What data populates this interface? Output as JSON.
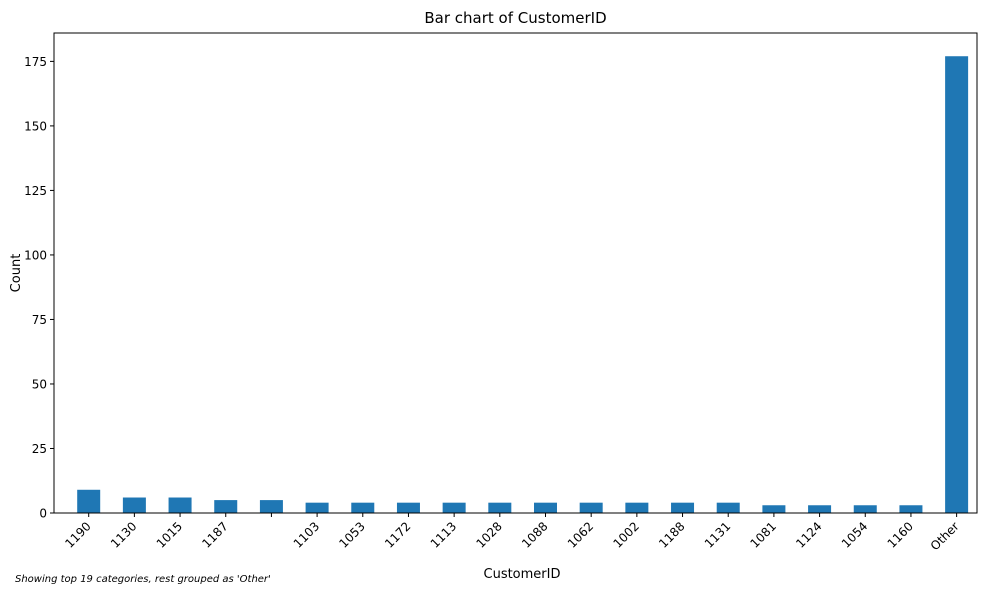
{
  "chart_data": {
    "type": "bar",
    "title": "Bar chart of CustomerID",
    "xlabel": "CustomerID",
    "ylabel": "Count",
    "categories": [
      "1190",
      "1130",
      "1015",
      "1187",
      "",
      "1103",
      "1053",
      "1172",
      "1113",
      "1028",
      "1088",
      "1062",
      "1002",
      "1188",
      "1131",
      "1081",
      "1124",
      "1054",
      "1160",
      "Other"
    ],
    "values": [
      9,
      6,
      6,
      5,
      5,
      4,
      4,
      4,
      4,
      4,
      4,
      4,
      4,
      4,
      4,
      3,
      3,
      3,
      3,
      177
    ],
    "ylim": [
      0,
      186
    ],
    "yticks": [
      0,
      25,
      50,
      75,
      100,
      125,
      150,
      175
    ],
    "bar_color": "#1f77b4",
    "grid": false,
    "footnote": "Showing top 19 categories, rest grouped as 'Other'"
  }
}
